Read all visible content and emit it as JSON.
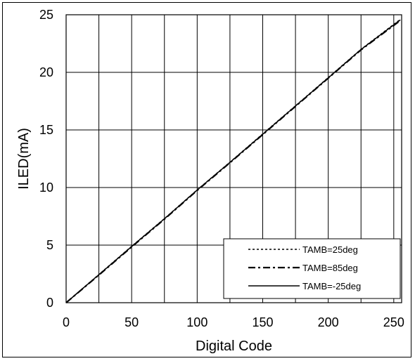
{
  "chart_data": {
    "type": "line",
    "xlabel": "Digital Code",
    "ylabel": "ILED(mA)",
    "xlim": [
      0,
      256
    ],
    "ylim": [
      0,
      25
    ],
    "xticks": [
      0,
      50,
      100,
      150,
      200,
      250
    ],
    "yticks": [
      0,
      5,
      10,
      15,
      20,
      25
    ],
    "xtick_labels": [
      "0",
      "50",
      "100",
      "150",
      "200",
      "250"
    ],
    "ytick_labels": [
      "0",
      "5",
      "10",
      "15",
      "20",
      "25"
    ],
    "x_grid_step": 25,
    "grid": true,
    "legend_position": "bottom-right",
    "series": [
      {
        "name": "TAMB=25deg",
        "style": "dotted",
        "x": [
          0,
          25,
          50,
          75,
          100,
          125,
          150,
          175,
          200,
          225,
          255
        ],
        "y": [
          0,
          2.45,
          4.9,
          7.3,
          9.8,
          12.2,
          14.65,
          17.1,
          19.55,
          22.0,
          24.6
        ]
      },
      {
        "name": "TAMB=85deg",
        "style": "dash-dot",
        "x": [
          0,
          25,
          50,
          75,
          100,
          125,
          150,
          175,
          200,
          225,
          255
        ],
        "y": [
          0,
          2.4,
          4.85,
          7.25,
          9.75,
          12.15,
          14.6,
          17.05,
          19.5,
          21.95,
          24.5
        ]
      },
      {
        "name": "TAMB=-25deg",
        "style": "solid",
        "x": [
          0,
          25,
          50,
          75,
          100,
          125,
          150,
          175,
          200,
          225,
          255
        ],
        "y": [
          0,
          2.43,
          4.88,
          7.28,
          9.78,
          12.18,
          14.62,
          17.08,
          19.52,
          21.98,
          24.55
        ]
      }
    ]
  }
}
